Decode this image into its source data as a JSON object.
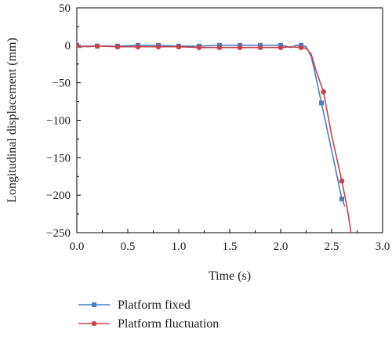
{
  "chart_data": {
    "type": "line",
    "xlabel": "Time (s)",
    "ylabel": "Longitudinal displacement (mm)",
    "xlim": [
      0,
      3.0
    ],
    "ylim": [
      -250,
      50
    ],
    "xticks": [
      "0.0",
      "0.5",
      "1.0",
      "1.5",
      "2.0",
      "2.5",
      "3.0"
    ],
    "xtick_values": [
      0,
      0.5,
      1.0,
      1.5,
      2.0,
      2.5,
      3.0
    ],
    "yticks": [
      "50",
      "0",
      "−50",
      "−100",
      "−150",
      "−200",
      "−250"
    ],
    "ytick_values": [
      50,
      0,
      -50,
      -100,
      -150,
      -200,
      -250
    ],
    "grid": false,
    "legend_position": "bottom",
    "series": [
      {
        "name": "Platform fixed",
        "color": "#4a7fc1",
        "marker": "square",
        "x": [
          0,
          0.02,
          0.05,
          0.1,
          0.2,
          0.4,
          0.6,
          0.8,
          1.0,
          1.2,
          1.4,
          1.6,
          1.8,
          2.0,
          2.05,
          2.1,
          2.15,
          2.2,
          2.25,
          2.3,
          2.35,
          2.4,
          2.5,
          2.6,
          2.63
        ],
        "y": [
          0,
          -1,
          -2,
          -1,
          -1,
          -1,
          0,
          0,
          -1,
          -1,
          0,
          0,
          0,
          0,
          -1,
          -3,
          0,
          0,
          -2,
          -15,
          -45,
          -77,
          -140,
          -205,
          -215
        ],
        "marker_x": [
          0,
          0.2,
          0.4,
          0.6,
          0.8,
          1.0,
          1.2,
          1.4,
          1.6,
          1.8,
          2.0,
          2.2,
          2.4,
          2.6
        ],
        "marker_y": [
          0,
          -1,
          -1,
          0,
          0,
          -1,
          -1,
          0,
          0,
          0,
          0,
          0,
          -77,
          -205
        ]
      },
      {
        "name": "Platform fluctuation",
        "color": "#c8434a",
        "marker": "circle",
        "x": [
          0,
          0.03,
          0.06,
          0.1,
          0.2,
          0.4,
          0.6,
          0.8,
          1.0,
          1.2,
          1.4,
          1.6,
          1.8,
          2.0,
          2.1,
          2.2,
          2.25,
          2.3,
          2.35,
          2.42,
          2.5,
          2.6,
          2.65,
          2.69
        ],
        "y": [
          0,
          -3,
          -1,
          -2,
          -1,
          -2,
          -2,
          -2,
          -2,
          -3,
          -3,
          -3,
          -3,
          -3,
          -2,
          -3,
          -4,
          -12,
          -35,
          -62,
          -120,
          -181,
          -215,
          -250
        ],
        "marker_x": [
          0,
          0.2,
          0.4,
          0.6,
          0.8,
          1.0,
          1.2,
          1.4,
          1.6,
          1.8,
          2.0,
          2.2,
          2.42,
          2.6
        ],
        "marker_y": [
          0,
          -1,
          -2,
          -2,
          -2,
          -2,
          -3,
          -3,
          -3,
          -3,
          -3,
          -3,
          -62,
          -181
        ]
      }
    ]
  }
}
